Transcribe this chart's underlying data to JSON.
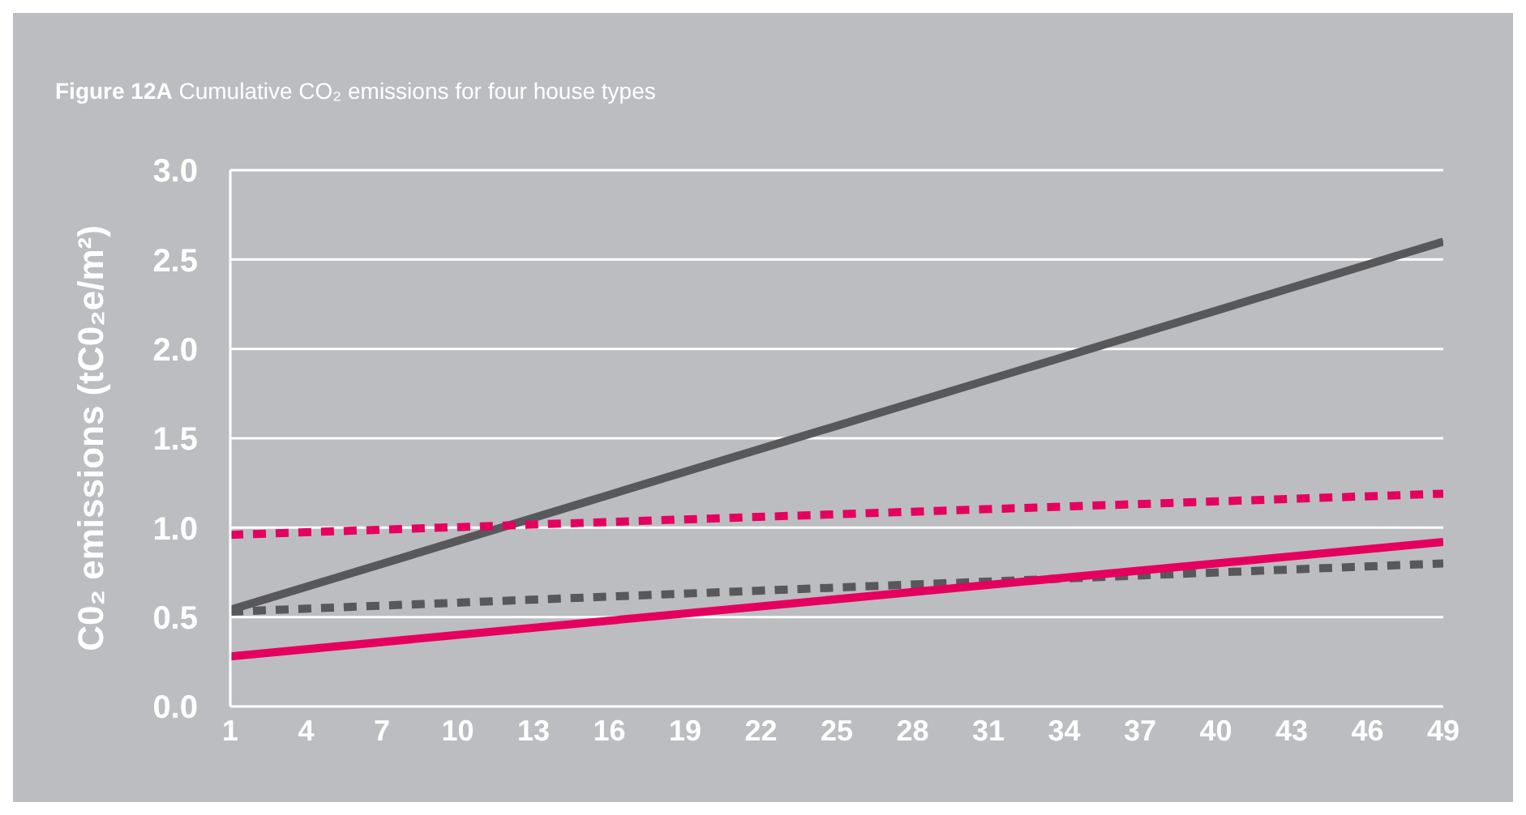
{
  "chart_data": {
    "type": "line",
    "title": "Figure 12A Cumulative CO₂ emissions for four house types",
    "ylabel": "C0₂ emissions (tC0₂e/m²)",
    "x": [
      1,
      49
    ],
    "series": [
      {
        "color": "#58585a",
        "values": [
          0.54,
          2.6
        ],
        "line_style": "solid"
      },
      {
        "color": "#e5005f",
        "values": [
          0.96,
          1.19
        ],
        "line_style": "dashed"
      },
      {
        "color": "#58585a",
        "values": [
          0.53,
          0.8
        ],
        "line_style": "dashed"
      },
      {
        "color": "#e5005f",
        "values": [
          0.28,
          0.92
        ],
        "line_style": "solid"
      }
    ],
    "xlim": [
      1,
      49
    ],
    "xticks": [
      1,
      4,
      7,
      10,
      13,
      16,
      19,
      22,
      25,
      28,
      31,
      34,
      37,
      40,
      43,
      46,
      49
    ],
    "ylim": [
      0,
      3
    ],
    "yticks": [
      {
        "value": 0,
        "label": "0.0"
      },
      {
        "value": 0.5,
        "label": "0.5"
      },
      {
        "value": 1,
        "label": "1.0"
      },
      {
        "value": 1.5,
        "label": "1.5"
      },
      {
        "value": 2,
        "label": "2.0"
      },
      {
        "value": 2.5,
        "label": "2.5"
      },
      {
        "value": 3,
        "label": "3.0"
      }
    ],
    "grid": "y",
    "legend": false,
    "marker": "none"
  }
}
